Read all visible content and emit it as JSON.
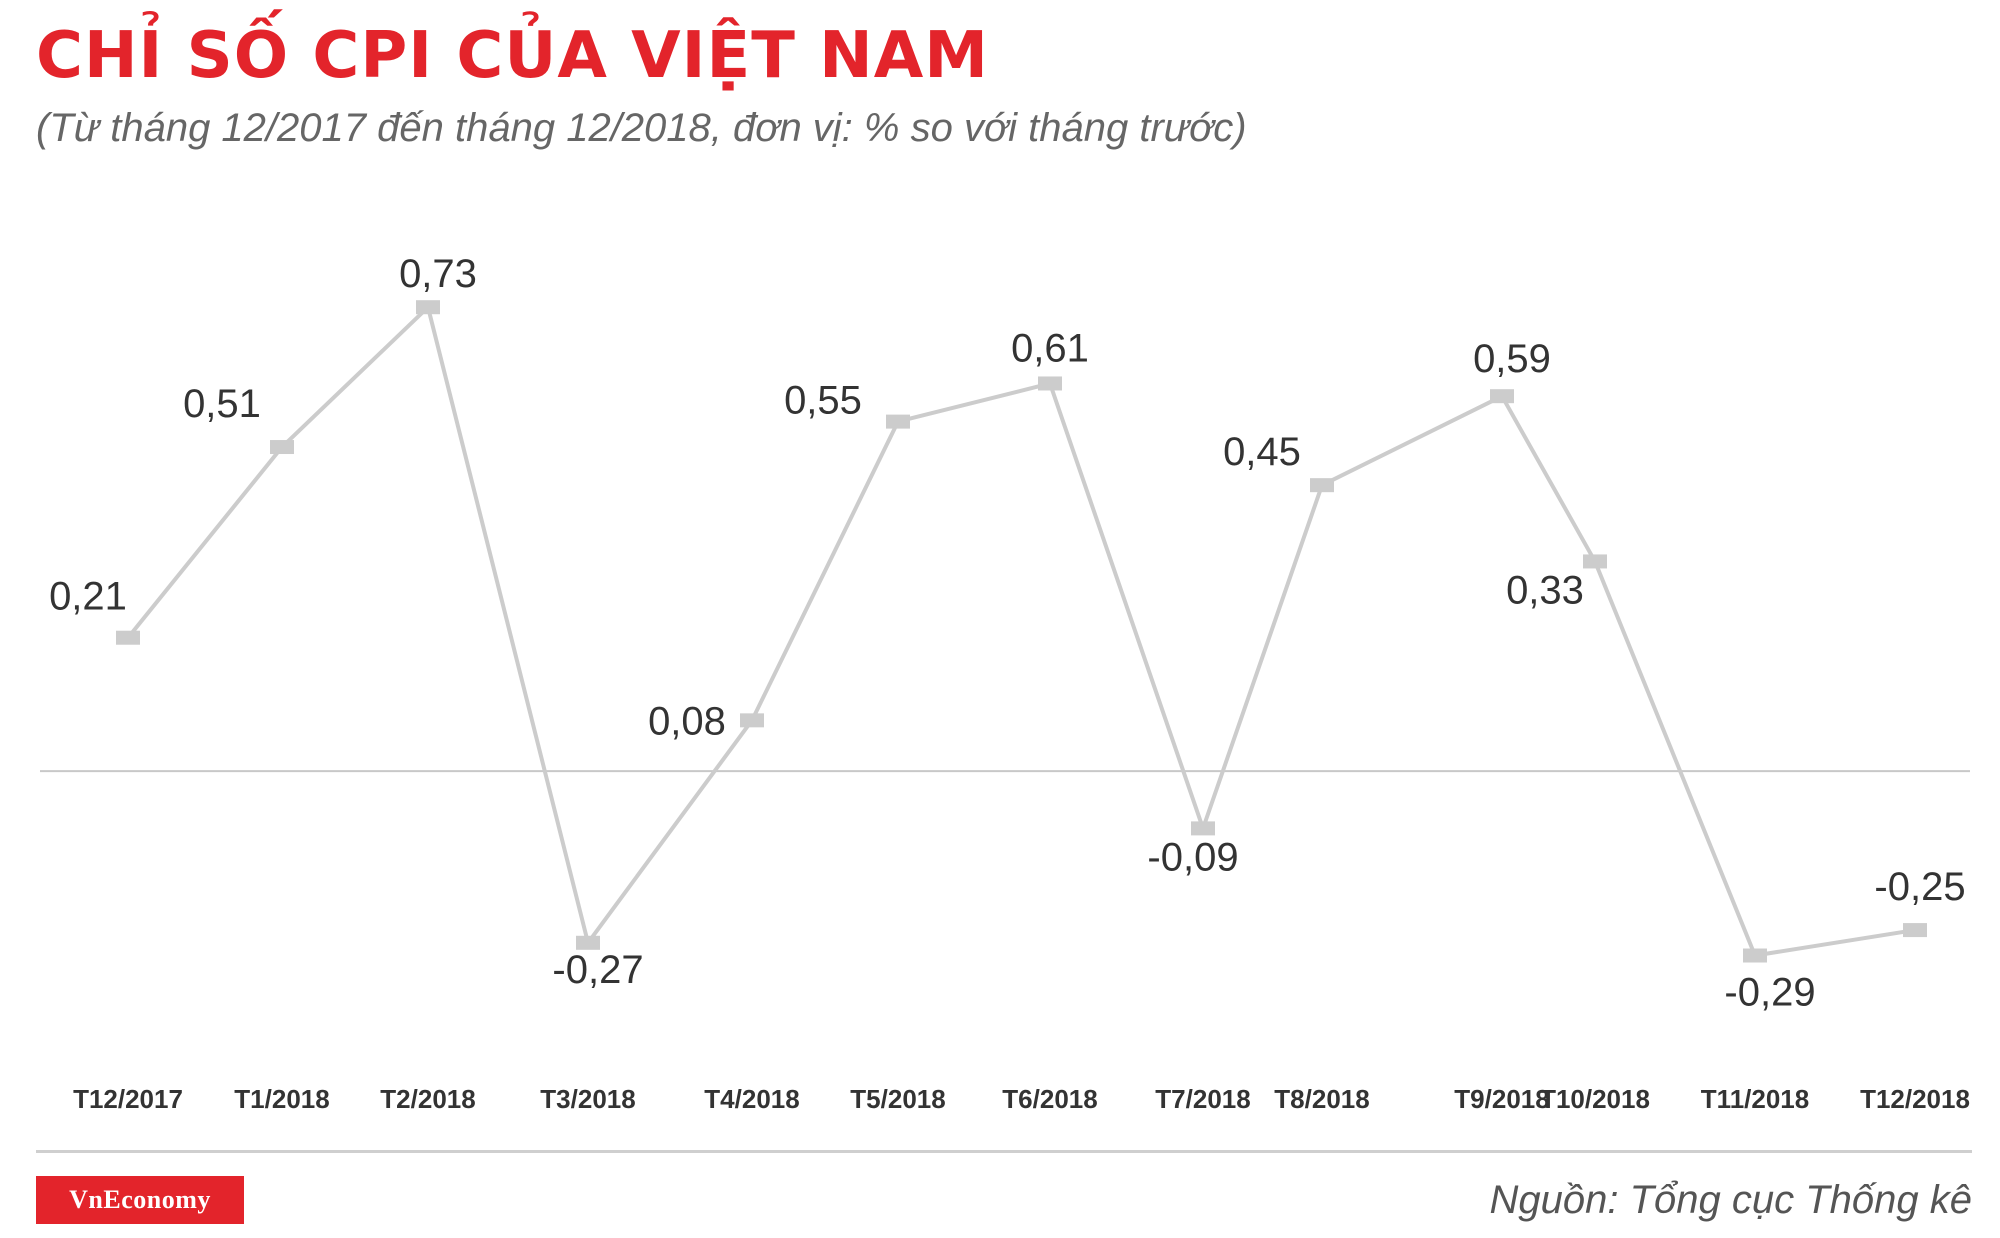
{
  "header": {
    "title": "CHỈ SỐ CPI CỦA VIỆT NAM",
    "subtitle": "(Từ tháng 12/2017 đến tháng 12/2018, đơn vị: % so với tháng trước)"
  },
  "footer": {
    "logo_text": "VnEconomy",
    "source": "Nguồn: Tổng cục Thống kê"
  },
  "colors": {
    "title": "#e3242b",
    "line": "#cccccc",
    "text": "#333333"
  },
  "chart_data": {
    "type": "line",
    "categories": [
      "T12/2017",
      "T1/2018",
      "T2/2018",
      "T3/2018",
      "T4/2018",
      "T5/2018",
      "T6/2018",
      "T7/2018",
      "T8/2018",
      "T9/2018",
      "T10/2018",
      "T11/2018",
      "T12/2018"
    ],
    "values": [
      0.21,
      0.51,
      0.73,
      -0.27,
      0.08,
      0.55,
      0.61,
      -0.09,
      0.45,
      0.59,
      0.33,
      -0.29,
      -0.25
    ],
    "data_labels": [
      "0,21",
      "0,51",
      "0,73",
      "-0,27",
      "0,08",
      "0,55",
      "0,61",
      "-0,09",
      "0,45",
      "0,59",
      "0,33",
      "-0,29",
      "-0,25"
    ],
    "title": "CHỈ SỐ CPI CỦA VIỆT NAM",
    "xlabel": "",
    "ylabel": "",
    "ylim": [
      -0.36,
      0.82
    ],
    "baseline": 0,
    "grid": false
  }
}
